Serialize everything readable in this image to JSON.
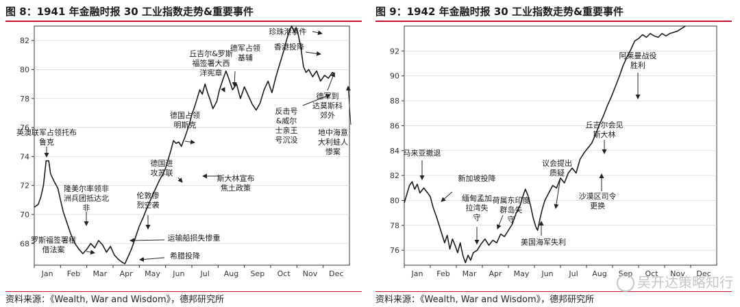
{
  "panels": [
    {
      "title": "图 8：1941 年金融时报 30 工业指数走势&重要事件",
      "source": "资料来源：《Wealth, War and Wisdom》，德邦研究所"
    },
    {
      "title": "图 9：1942 年金融时报 30 工业指数走势&重要事件",
      "source": "资料来源：《Wealth, War and Wisdom》，德邦研究所"
    }
  ],
  "watermark": "吴开达策略知行",
  "colors": {
    "line": "#1a1a1a",
    "grid": "#d9d9d9",
    "accent_rule": "#c8102e"
  },
  "chart_data": [
    {
      "type": "line",
      "title": "",
      "xlabel": "",
      "ylabel": "",
      "categories": [
        "Jan",
        "Feb",
        "Mar",
        "Apr",
        "May",
        "Jun",
        "Jul",
        "Aug",
        "Sep",
        "Oct",
        "Nov",
        "Dec"
      ],
      "yticks": [
        68,
        70,
        72,
        74,
        76,
        78,
        80,
        82
      ],
      "ylim": [
        66.5,
        83
      ],
      "grid": true,
      "series": [
        {
          "values": [
            [
              0.0,
              70.5
            ],
            [
              0.15,
              70.7
            ],
            [
              0.25,
              71.2
            ],
            [
              0.35,
              72.0
            ],
            [
              0.45,
              73.7
            ],
            [
              0.55,
              73.7
            ],
            [
              0.62,
              72.8
            ],
            [
              0.75,
              72.3
            ],
            [
              0.9,
              71.8
            ],
            [
              1.0,
              71.0
            ],
            [
              1.1,
              70.2
            ],
            [
              1.25,
              69.4
            ],
            [
              1.4,
              68.6
            ],
            [
              1.55,
              68.0
            ],
            [
              1.7,
              67.6
            ],
            [
              1.85,
              67.3
            ],
            [
              2.0,
              67.6
            ],
            [
              2.15,
              68.0
            ],
            [
              2.3,
              67.7
            ],
            [
              2.45,
              68.2
            ],
            [
              2.6,
              67.9
            ],
            [
              2.75,
              67.4
            ],
            [
              2.9,
              67.8
            ],
            [
              3.05,
              67.2
            ],
            [
              3.2,
              66.9
            ],
            [
              3.35,
              66.7
            ],
            [
              3.45,
              66.6
            ],
            [
              3.55,
              67.0
            ],
            [
              3.7,
              67.6
            ],
            [
              3.85,
              68.4
            ],
            [
              4.0,
              69.2
            ],
            [
              4.15,
              69.8
            ],
            [
              4.3,
              70.5
            ],
            [
              4.45,
              71.1
            ],
            [
              4.6,
              71.7
            ],
            [
              4.75,
              72.3
            ],
            [
              4.9,
              72.8
            ],
            [
              5.0,
              73.2
            ],
            [
              5.1,
              73.8
            ],
            [
              5.2,
              74.4
            ],
            [
              5.3,
              75.1
            ],
            [
              5.4,
              74.9
            ],
            [
              5.5,
              75.0
            ],
            [
              5.6,
              74.7
            ],
            [
              5.75,
              75.4
            ],
            [
              5.9,
              76.2
            ],
            [
              6.0,
              76.9
            ],
            [
              6.1,
              77.4
            ],
            [
              6.2,
              78.0
            ],
            [
              6.3,
              78.6
            ],
            [
              6.4,
              78.3
            ],
            [
              6.5,
              79.0
            ],
            [
              6.6,
              78.4
            ],
            [
              6.7,
              77.9
            ],
            [
              6.8,
              77.3
            ],
            [
              6.95,
              77.8
            ],
            [
              7.05,
              78.6
            ],
            [
              7.2,
              79.4
            ],
            [
              7.3,
              79.9
            ],
            [
              7.4,
              79.4
            ],
            [
              7.55,
              78.6
            ],
            [
              7.7,
              79.0
            ],
            [
              7.85,
              78.0
            ],
            [
              8.0,
              78.8
            ],
            [
              8.15,
              78.2
            ],
            [
              8.3,
              77.6
            ],
            [
              8.45,
              77.2
            ],
            [
              8.6,
              77.7
            ],
            [
              8.75,
              78.6
            ],
            [
              8.9,
              79.2
            ],
            [
              9.05,
              78.4
            ],
            [
              9.2,
              79.5
            ],
            [
              9.35,
              80.4
            ],
            [
              9.5,
              81.3
            ],
            [
              9.6,
              82.0
            ],
            [
              9.7,
              82.6
            ],
            [
              9.8,
              83.0
            ],
            [
              9.9,
              82.6
            ],
            [
              9.97,
              82.9
            ],
            [
              10.05,
              82.4
            ],
            [
              10.15,
              81.5
            ],
            [
              10.25,
              80.2
            ],
            [
              10.35,
              79.8
            ],
            [
              10.45,
              80.0
            ],
            [
              10.6,
              79.5
            ],
            [
              10.75,
              79.9
            ],
            [
              10.9,
              79.2
            ],
            [
              11.05,
              79.6
            ],
            [
              11.2,
              79.4
            ],
            [
              11.35,
              79.8
            ],
            [
              11.45,
              79.7
            ]
          ]
        }
      ],
      "annotations": [
        "英澳联军占领托布鲁克",
        "隆美尔率领非洲兵团抵达北非",
        "罗斯福签署租借法案",
        "伦敦惨烈空袭",
        "运输船损失惨重",
        "希腊投降",
        "德国进攻苏联",
        "德国占领明斯克",
        "丘吉尔&罗斯福签署大西洋宪章",
        "德军占领基辅",
        "斯大林宣布焦土政策",
        "珍珠港事件",
        "香港投降",
        "反击号&威尔士亲王号沉没",
        "德军到达莫斯科郊外",
        "地中海意大利蛙人惨案"
      ]
    },
    {
      "type": "line",
      "title": "",
      "xlabel": "",
      "ylabel": "",
      "categories": [
        "Jan",
        "Feb",
        "Mar",
        "Apr",
        "May",
        "Jun",
        "Jul",
        "Aug",
        "Sep",
        "Oct",
        "Nov",
        "Dec"
      ],
      "yticks": [
        76,
        78,
        80,
        82,
        84,
        86,
        88,
        90,
        92
      ],
      "ylim": [
        74.8,
        94
      ],
      "grid": true,
      "series": [
        {
          "values": [
            [
              0.0,
              79.8
            ],
            [
              0.1,
              80.5
            ],
            [
              0.2,
              81.2
            ],
            [
              0.3,
              81.5
            ],
            [
              0.4,
              80.9
            ],
            [
              0.5,
              81.3
            ],
            [
              0.6,
              80.6
            ],
            [
              0.75,
              81.0
            ],
            [
              0.9,
              80.6
            ],
            [
              1.0,
              80.3
            ],
            [
              1.1,
              79.5
            ],
            [
              1.25,
              78.6
            ],
            [
              1.4,
              77.6
            ],
            [
              1.55,
              76.6
            ],
            [
              1.65,
              77.2
            ],
            [
              1.75,
              76.1
            ],
            [
              1.85,
              76.9
            ],
            [
              1.95,
              76.4
            ],
            [
              2.05,
              75.8
            ],
            [
              2.15,
              76.6
            ],
            [
              2.25,
              75.6
            ],
            [
              2.35,
              75.0
            ],
            [
              2.45,
              75.6
            ],
            [
              2.55,
              75.2
            ],
            [
              2.65,
              75.8
            ],
            [
              2.8,
              76.0
            ],
            [
              2.95,
              76.5
            ],
            [
              3.1,
              76.9
            ],
            [
              3.25,
              76.4
            ],
            [
              3.4,
              76.8
            ],
            [
              3.55,
              76.6
            ],
            [
              3.7,
              77.3
            ],
            [
              3.85,
              77.1
            ],
            [
              4.0,
              77.6
            ],
            [
              4.15,
              78.1
            ],
            [
              4.3,
              79.0
            ],
            [
              4.45,
              79.6
            ],
            [
              4.55,
              80.3
            ],
            [
              4.65,
              80.9
            ],
            [
              4.75,
              80.4
            ],
            [
              4.85,
              79.6
            ],
            [
              4.95,
              78.6
            ],
            [
              5.05,
              77.9
            ],
            [
              5.12,
              77.6
            ],
            [
              5.2,
              78.4
            ],
            [
              5.3,
              79.3
            ],
            [
              5.4,
              80.0
            ],
            [
              5.55,
              80.6
            ],
            [
              5.7,
              81.2
            ],
            [
              5.85,
              81.0
            ],
            [
              6.0,
              81.8
            ],
            [
              6.15,
              81.4
            ],
            [
              6.3,
              82.2
            ],
            [
              6.45,
              82.6
            ],
            [
              6.6,
              82.2
            ],
            [
              6.75,
              83.3
            ],
            [
              6.9,
              83.8
            ],
            [
              7.05,
              84.2
            ],
            [
              7.2,
              84.6
            ],
            [
              7.35,
              85.3
            ],
            [
              7.5,
              86.1
            ],
            [
              7.65,
              86.8
            ],
            [
              7.8,
              87.6
            ],
            [
              7.95,
              88.3
            ],
            [
              8.1,
              89.1
            ],
            [
              8.25,
              89.9
            ],
            [
              8.4,
              90.8
            ],
            [
              8.55,
              91.5
            ],
            [
              8.7,
              92.1
            ],
            [
              8.85,
              92.8
            ],
            [
              9.0,
              93.0
            ],
            [
              9.15,
              93.3
            ],
            [
              9.3,
              93.1
            ],
            [
              9.45,
              93.4
            ],
            [
              9.6,
              93.2
            ],
            [
              9.75,
              93.1
            ],
            [
              9.9,
              93.4
            ],
            [
              10.05,
              93.2
            ],
            [
              10.2,
              93.4
            ],
            [
              10.35,
              93.5
            ],
            [
              10.5,
              93.6
            ],
            [
              10.65,
              93.8
            ],
            [
              10.8,
              94.0
            ]
          ]
        }
      ],
      "annotations": [
        "马来亚撤退",
        "新加坡投降",
        "缅甸孟加拉湾失守",
        "荷属东印度群岛失守",
        "美国海军失利",
        "议会提出质疑",
        "沙漠区司令更换",
        "丘吉尔会见斯大林",
        "阿莱曼战役胜利"
      ]
    }
  ]
}
